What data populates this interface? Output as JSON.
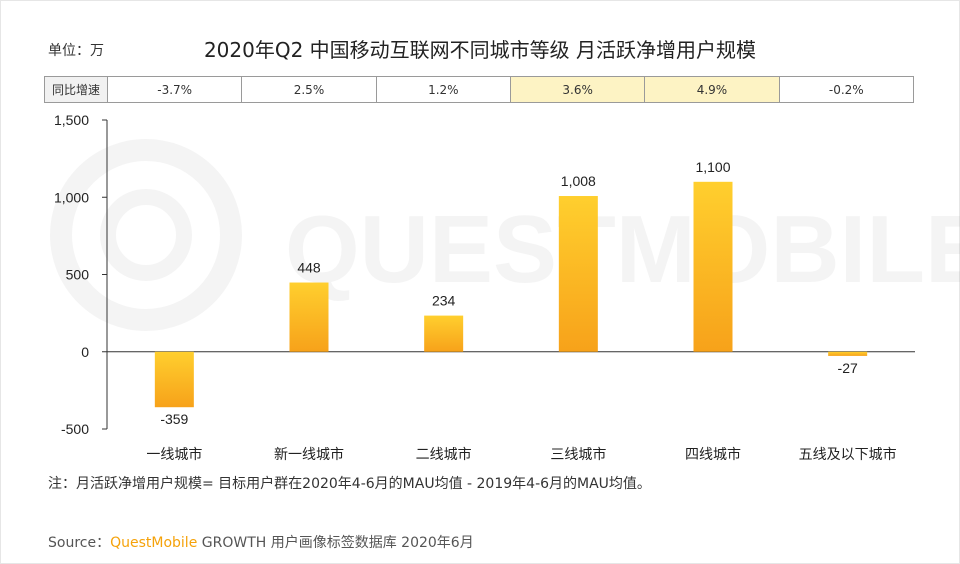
{
  "unit_label": "单位：万",
  "yoy": {
    "label": "同比增速",
    "cells": [
      "-3.7%",
      "2.5%",
      "1.2%",
      "3.6%",
      "4.9%",
      "-0.2%"
    ]
  },
  "watermark": "QUESTMOBILE",
  "note": "注：月活跃净增用户规模= 目标用户群在2020年4-6月的MAU均值 - 2019年4-6月的MAU均值。",
  "source": {
    "prefix": "Source：",
    "brand": "QuestMobile",
    "suffix": " GROWTH 用户画像标签数据库 2020年6月"
  },
  "colors": {
    "bar_top": "#ffcf2e",
    "bar_bottom": "#f7a21a",
    "highlight": "#fdf3c4"
  },
  "chart_data": {
    "type": "bar",
    "title": "2020年Q2 中国移动互联网不同城市等级 月活跃净增用户规模",
    "categories": [
      "一线城市",
      "新一线城市",
      "二线城市",
      "三线城市",
      "四线城市",
      "五线及以下城市"
    ],
    "values": [
      -359,
      448,
      234,
      1008,
      1100,
      -27
    ],
    "value_labels": [
      "-359",
      "448",
      "234",
      "1,008",
      "1,100",
      "-27"
    ],
    "ylim": [
      -500,
      1500
    ],
    "yticks": [
      1500,
      1000,
      500,
      0,
      -500
    ],
    "ytick_labels": [
      "1,500",
      "1,000",
      "500",
      "0",
      "-500"
    ],
    "grid": false,
    "legend": "none"
  }
}
